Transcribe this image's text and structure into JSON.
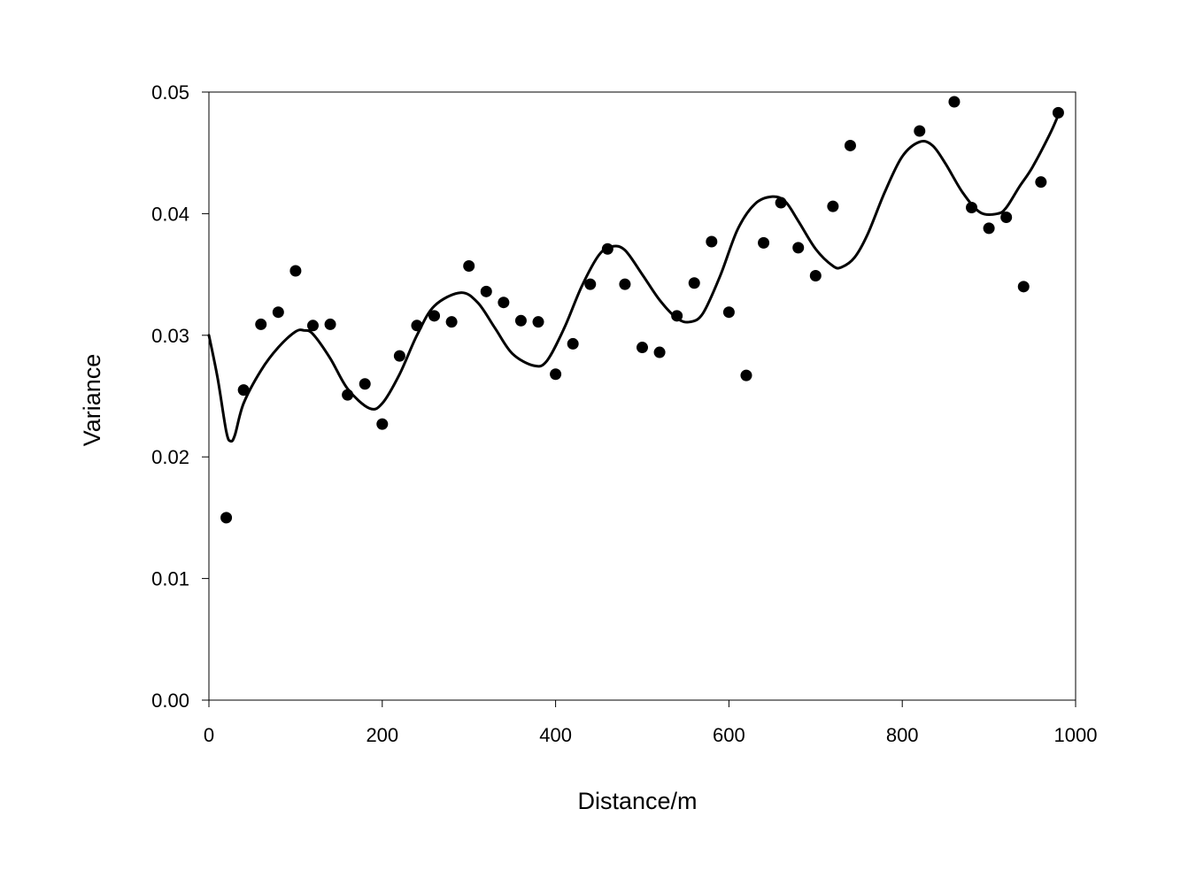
{
  "chart_data": {
    "type": "scatter",
    "title": "",
    "xlabel": "Distance/m",
    "ylabel": "Variance",
    "xlim": [
      0,
      1000
    ],
    "ylim": [
      0,
      0.05
    ],
    "x_ticks": [
      "0",
      "200",
      "400",
      "600",
      "800",
      "1000"
    ],
    "y_ticks": [
      "0.00",
      "0.01",
      "0.02",
      "0.03",
      "0.04",
      "0.05"
    ],
    "grid": false,
    "legend": "none",
    "series": [
      {
        "kind": "points",
        "marker": "filled-circle",
        "color": "#000000",
        "x": [
          20,
          40,
          60,
          80,
          100,
          120,
          140,
          160,
          180,
          200,
          220,
          240,
          260,
          280,
          300,
          320,
          340,
          360,
          380,
          400,
          420,
          440,
          460,
          480,
          500,
          520,
          540,
          560,
          580,
          600,
          620,
          640,
          660,
          680,
          700,
          720,
          740,
          820,
          860,
          880,
          900,
          920,
          940,
          960,
          980
        ],
        "y": [
          0.015,
          0.0255,
          0.0309,
          0.0319,
          0.0353,
          0.0308,
          0.0309,
          0.0251,
          0.026,
          0.0227,
          0.0283,
          0.0308,
          0.0316,
          0.0311,
          0.0357,
          0.0336,
          0.0327,
          0.0312,
          0.0311,
          0.0268,
          0.0293,
          0.0342,
          0.0371,
          0.0342,
          0.029,
          0.0286,
          0.0316,
          0.0343,
          0.0377,
          0.0319,
          0.0267,
          0.0376,
          0.0409,
          0.0372,
          0.0349,
          0.0406,
          0.0456,
          0.0468,
          0.0492,
          0.0405,
          0.0388,
          0.0397,
          0.034,
          0.0426,
          0.0483
        ]
      },
      {
        "kind": "fitted-curve",
        "color": "#000000",
        "x": [
          0,
          10,
          20,
          25,
          30,
          40,
          60,
          80,
          100,
          110,
          120,
          140,
          160,
          185,
          200,
          220,
          240,
          260,
          290,
          310,
          330,
          350,
          375,
          390,
          410,
          430,
          450,
          465,
          480,
          500,
          520,
          540,
          555,
          570,
          590,
          610,
          630,
          650,
          665,
          680,
          700,
          720,
          730,
          745,
          760,
          780,
          800,
          820,
          835,
          850,
          870,
          890,
          910,
          920,
          935,
          950,
          970,
          980
        ],
        "y": [
          0.03,
          0.0265,
          0.0221,
          0.0213,
          0.0218,
          0.0244,
          0.0271,
          0.029,
          0.0303,
          0.0304,
          0.0301,
          0.0281,
          0.0256,
          0.024,
          0.0244,
          0.0268,
          0.03,
          0.0324,
          0.0335,
          0.0327,
          0.0306,
          0.0285,
          0.0275,
          0.0279,
          0.0306,
          0.034,
          0.0366,
          0.0373,
          0.037,
          0.035,
          0.0329,
          0.0314,
          0.0311,
          0.0318,
          0.0349,
          0.0387,
          0.0408,
          0.0414,
          0.041,
          0.0394,
          0.0371,
          0.0357,
          0.0356,
          0.0364,
          0.0383,
          0.0418,
          0.0447,
          0.0459,
          0.0456,
          0.0441,
          0.0417,
          0.0401,
          0.04,
          0.0405,
          0.0422,
          0.0438,
          0.0465,
          0.0481
        ]
      }
    ]
  }
}
